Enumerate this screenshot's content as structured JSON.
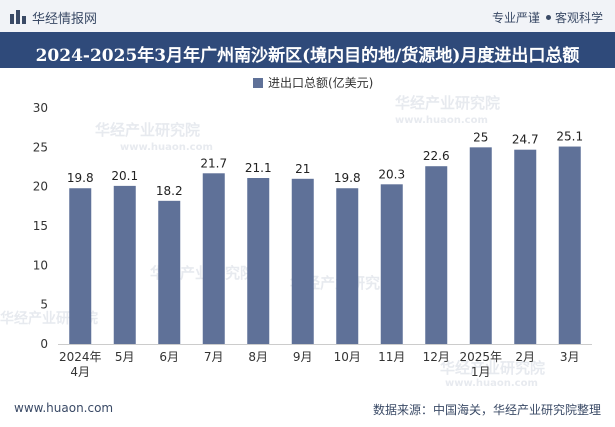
{
  "header": {
    "brand": "华经情报网",
    "tagline_left": "专业严谨",
    "tagline_right": "客观科学"
  },
  "watermark": {
    "cn": "华经产业研究院",
    "url": "www.huaon.com"
  },
  "footer": {
    "website": "www.huaon.com",
    "source": "数据来源：中国海关，华经产业研究院整理"
  },
  "colors": {
    "bar": "#5f7198",
    "title_bg": "#2f4a7a",
    "header_bg": "#f1f3f7"
  },
  "chart_data": {
    "type": "bar",
    "title": "2024-2025年3月年广州南沙新区(境内目的地/货源地)月度进出口总额",
    "legend": "进出口总额(亿美元)",
    "categories": [
      "2024年\n4月",
      "5月",
      "6月",
      "7月",
      "8月",
      "9月",
      "10月",
      "11月",
      "12月",
      "2025年\n1月",
      "2月",
      "3月"
    ],
    "values": [
      19.8,
      20.1,
      18.2,
      21.7,
      21.1,
      21,
      19.8,
      20.3,
      22.6,
      25,
      24.7,
      25.1
    ],
    "value_labels": [
      "19.8",
      "20.1",
      "18.2",
      "21.7",
      "21.1",
      "21",
      "19.8",
      "20.3",
      "22.6",
      "25",
      "24.7",
      "25.1"
    ],
    "ylim": [
      0,
      30
    ],
    "yticks": [
      0,
      5,
      10,
      15,
      20,
      25,
      30
    ],
    "xlabel": "",
    "ylabel": ""
  }
}
